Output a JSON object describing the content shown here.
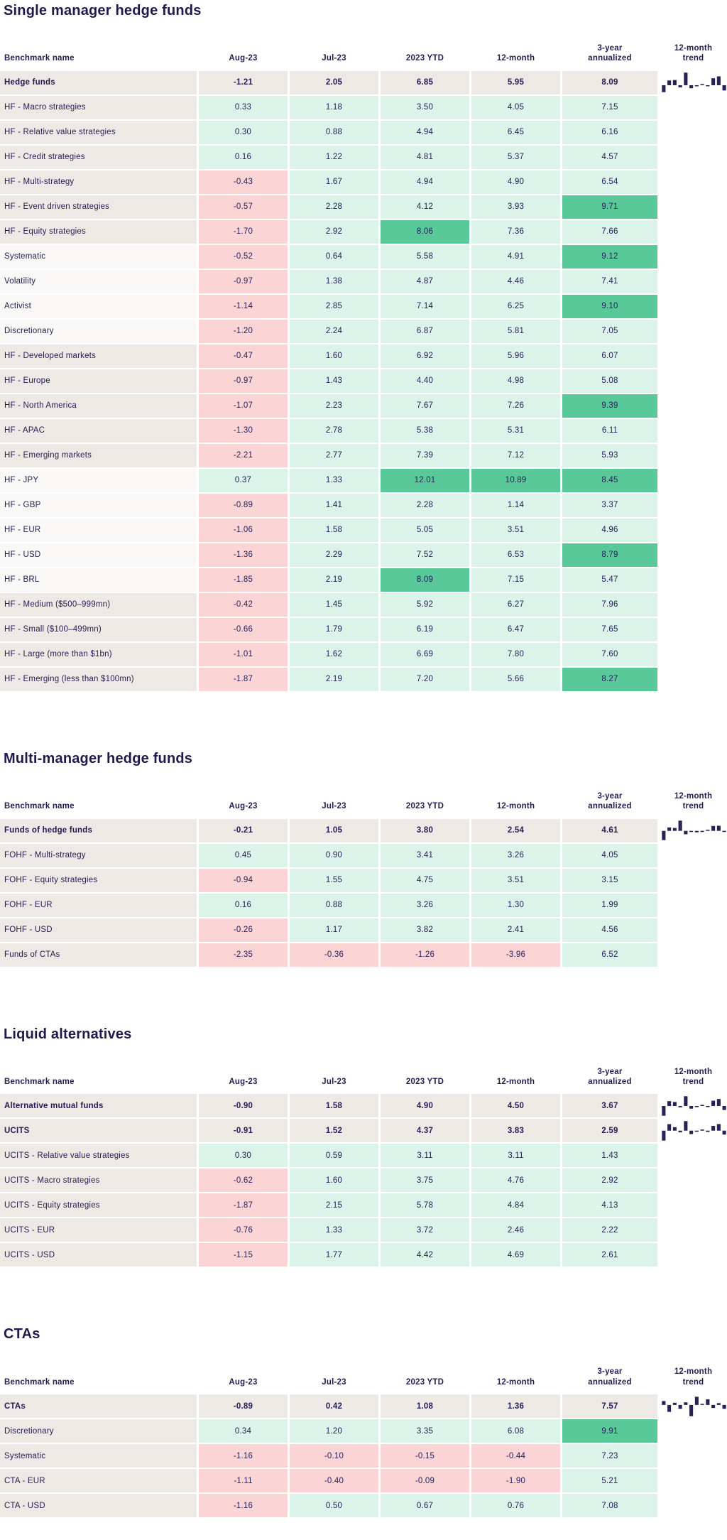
{
  "colors": {
    "navy_text": "#221E55",
    "title_text": "#1D1A4E",
    "row_beige": "#EDE9E4",
    "row_light": "#FAF8F6",
    "positive_mint": "#DBF3E8",
    "negative_pink": "#FBD4D6",
    "strong_green": "#5AC99A",
    "sparkline_navy": "#262253",
    "strong_green_threshold": 8
  },
  "chart_data": [
    {
      "type": "table",
      "title": "Single manager hedge funds",
      "columns": [
        "Benchmark name",
        "Aug-23",
        "Jul-23",
        "2023 YTD",
        "12-month",
        "3-year\nannualized",
        "12-month\ntrend"
      ],
      "rows": [
        {
          "name": "Hedge funds",
          "bold": true,
          "values": [
            "-1.21",
            "2.05",
            "6.85",
            "5.95",
            "8.09"
          ],
          "trend": [
            -1.6,
            1.1,
            1.2,
            -0.5,
            2.9,
            -0.7,
            -0.15,
            0.1,
            -0.2,
            1.6,
            2.05,
            -1.21
          ]
        },
        {
          "name": "HF - Macro strategies",
          "shade": "beige",
          "values": [
            "0.33",
            "1.18",
            "3.50",
            "4.05",
            "7.15"
          ]
        },
        {
          "name": "HF - Relative value strategies",
          "shade": "beige",
          "values": [
            "0.30",
            "0.88",
            "4.94",
            "6.45",
            "6.16"
          ]
        },
        {
          "name": "HF - Credit strategies",
          "shade": "beige",
          "values": [
            "0.16",
            "1.22",
            "4.81",
            "5.37",
            "4.57"
          ]
        },
        {
          "name": "HF - Multi-strategy",
          "shade": "beige",
          "values": [
            "-0.43",
            "1.67",
            "4.94",
            "4.90",
            "6.54"
          ]
        },
        {
          "name": "HF - Event driven strategies",
          "shade": "beige",
          "values": [
            "-0.57",
            "2.28",
            "4.12",
            "3.93",
            "9.71"
          ]
        },
        {
          "name": "HF - Equity strategies",
          "shade": "beige",
          "values": [
            "-1.70",
            "2.92",
            "8.06",
            "7.36",
            "7.66"
          ]
        },
        {
          "name": "Systematic",
          "shade": "light",
          "values": [
            "-0.52",
            "0.64",
            "5.58",
            "4.91",
            "9.12"
          ]
        },
        {
          "name": "Volatility",
          "shade": "light",
          "values": [
            "-0.97",
            "1.38",
            "4.87",
            "4.46",
            "7.41"
          ]
        },
        {
          "name": "Activist",
          "shade": "light",
          "values": [
            "-1.14",
            "2.85",
            "7.14",
            "6.25",
            "9.10"
          ]
        },
        {
          "name": "Discretionary",
          "shade": "light",
          "values": [
            "-1.20",
            "2.24",
            "6.87",
            "5.81",
            "7.05"
          ]
        },
        {
          "name": "HF - Developed markets",
          "shade": "beige",
          "values": [
            "-0.47",
            "1.60",
            "6.92",
            "5.96",
            "6.07"
          ]
        },
        {
          "name": "HF - Europe",
          "shade": "beige",
          "values": [
            "-0.97",
            "1.43",
            "4.40",
            "4.98",
            "5.08"
          ]
        },
        {
          "name": "HF - North America",
          "shade": "beige",
          "values": [
            "-1.07",
            "2.23",
            "7.67",
            "7.26",
            "9.39"
          ]
        },
        {
          "name": "HF - APAC",
          "shade": "beige",
          "values": [
            "-1.30",
            "2.78",
            "5.38",
            "5.31",
            "6.11"
          ]
        },
        {
          "name": "HF - Emerging markets",
          "shade": "beige",
          "values": [
            "-2.21",
            "2.77",
            "7.39",
            "7.12",
            "5.93"
          ]
        },
        {
          "name": "HF - JPY",
          "shade": "light",
          "values": [
            "0.37",
            "1.33",
            "12.01",
            "10.89",
            "8.45"
          ]
        },
        {
          "name": "HF - GBP",
          "shade": "light",
          "values": [
            "-0.89",
            "1.41",
            "2.28",
            "1.14",
            "3.37"
          ]
        },
        {
          "name": "HF - EUR",
          "shade": "light",
          "values": [
            "-1.06",
            "1.58",
            "5.05",
            "3.51",
            "4.96"
          ]
        },
        {
          "name": "HF - USD",
          "shade": "light",
          "values": [
            "-1.36",
            "2.29",
            "7.52",
            "6.53",
            "8.79"
          ]
        },
        {
          "name": "HF - BRL",
          "shade": "light",
          "values": [
            "-1.85",
            "2.19",
            "8.09",
            "7.15",
            "5.47"
          ]
        },
        {
          "name": "HF - Medium ($500–999mn)",
          "shade": "beige",
          "values": [
            "-0.42",
            "1.45",
            "5.92",
            "6.27",
            "7.96"
          ]
        },
        {
          "name": "HF - Small ($100–499mn)",
          "shade": "beige",
          "values": [
            "-0.66",
            "1.79",
            "6.19",
            "6.47",
            "7.65"
          ]
        },
        {
          "name": "HF - Large (more than $1bn)",
          "shade": "beige",
          "values": [
            "-1.01",
            "1.62",
            "6.69",
            "7.80",
            "7.60"
          ]
        },
        {
          "name": "HF - Emerging (less than $100mn)",
          "shade": "beige",
          "values": [
            "-1.87",
            "2.19",
            "7.20",
            "5.66",
            "8.27"
          ]
        }
      ]
    },
    {
      "type": "table",
      "title": "Multi-manager hedge funds",
      "columns": [
        "Benchmark name",
        "Aug-23",
        "Jul-23",
        "2023 YTD",
        "12-month",
        "3-year\nannualized",
        "12-month\ntrend"
      ],
      "rows": [
        {
          "name": "Funds of hedge funds",
          "bold": true,
          "values": [
            "-0.21",
            "1.05",
            "3.80",
            "2.54",
            "4.61"
          ],
          "trend": [
            -1.9,
            0.7,
            0.6,
            2.1,
            -0.7,
            -0.2,
            -0.3,
            -0.1,
            0.2,
            1.0,
            1.05,
            -0.21
          ]
        },
        {
          "name": "FOHF - Multi-strategy",
          "shade": "beige",
          "values": [
            "0.45",
            "0.90",
            "3.41",
            "3.26",
            "4.05"
          ]
        },
        {
          "name": "FOHF - Equity strategies",
          "shade": "beige",
          "values": [
            "-0.94",
            "1.55",
            "4.75",
            "3.51",
            "3.15"
          ]
        },
        {
          "name": "FOHF - EUR",
          "shade": "beige",
          "values": [
            "0.16",
            "0.88",
            "3.26",
            "1.30",
            "1.99"
          ]
        },
        {
          "name": "FOHF - USD",
          "shade": "beige",
          "values": [
            "-0.26",
            "1.17",
            "3.82",
            "2.41",
            "4.56"
          ]
        },
        {
          "name": "Funds of CTAs",
          "shade": "beige",
          "values": [
            "-2.35",
            "-0.36",
            "-1.26",
            "-3.96",
            "6.52"
          ]
        }
      ]
    },
    {
      "type": "table",
      "title": "Liquid alternatives",
      "columns": [
        "Benchmark name",
        "Aug-23",
        "Jul-23",
        "2023 YTD",
        "12-month",
        "3-year\nannualized",
        "12-month\ntrend"
      ],
      "rows": [
        {
          "name": "Alternative mutual funds",
          "bold": true,
          "values": [
            "-0.90",
            "1.58",
            "4.90",
            "4.50",
            "3.67"
          ],
          "trend": [
            -2.2,
            1.1,
            0.9,
            -0.3,
            2.2,
            -0.6,
            -0.1,
            0.1,
            -0.2,
            1.2,
            1.58,
            -0.9
          ]
        },
        {
          "name": "UCITS",
          "bold": true,
          "values": [
            "-0.91",
            "1.52",
            "4.37",
            "3.83",
            "2.59"
          ],
          "trend": [
            -2.3,
            1.5,
            0.8,
            -0.4,
            2.2,
            -0.8,
            -0.15,
            0.1,
            -0.3,
            1.1,
            1.52,
            -0.91
          ]
        },
        {
          "name": "UCITS - Relative value strategies",
          "shade": "beige",
          "values": [
            "0.30",
            "0.59",
            "3.11",
            "3.11",
            "1.43"
          ]
        },
        {
          "name": "UCITS - Macro strategies",
          "shade": "beige",
          "values": [
            "-0.62",
            "1.60",
            "3.75",
            "4.76",
            "2.92"
          ]
        },
        {
          "name": "UCITS - Equity strategies",
          "shade": "beige",
          "values": [
            "-1.87",
            "2.15",
            "5.78",
            "4.84",
            "4.13"
          ]
        },
        {
          "name": "UCITS - EUR",
          "shade": "beige",
          "values": [
            "-0.76",
            "1.33",
            "3.72",
            "2.46",
            "2.22"
          ]
        },
        {
          "name": "UCITS - USD",
          "shade": "beige",
          "values": [
            "-1.15",
            "1.77",
            "4.42",
            "4.69",
            "2.61"
          ]
        }
      ]
    },
    {
      "type": "table",
      "title": "CTAs",
      "columns": [
        "Benchmark name",
        "Aug-23",
        "Jul-23",
        "2023 YTD",
        "12-month",
        "3-year\nannualized",
        "12-month\ntrend"
      ],
      "rows": [
        {
          "name": "CTAs",
          "bold": true,
          "values": [
            "-0.89",
            "0.42",
            "1.08",
            "1.36",
            "7.57"
          ],
          "trend": [
            0.9,
            -1.6,
            0.5,
            -0.9,
            0.6,
            -2.6,
            1.9,
            0.2,
            1.3,
            -0.7,
            0.42,
            -0.89
          ]
        },
        {
          "name": "Discretionary",
          "shade": "beige",
          "values": [
            "0.34",
            "1.20",
            "3.35",
            "6.08",
            "9.91"
          ]
        },
        {
          "name": "Systematic",
          "shade": "beige",
          "values": [
            "-1.16",
            "-0.10",
            "-0.15",
            "-0.44",
            "7.23"
          ]
        },
        {
          "name": "CTA - EUR",
          "shade": "beige",
          "values": [
            "-1.11",
            "-0.40",
            "-0.09",
            "-1.90",
            "5.21"
          ]
        },
        {
          "name": "CTA - USD",
          "shade": "beige",
          "values": [
            "-1.16",
            "0.50",
            "0.67",
            "0.76",
            "7.08"
          ]
        }
      ]
    }
  ]
}
